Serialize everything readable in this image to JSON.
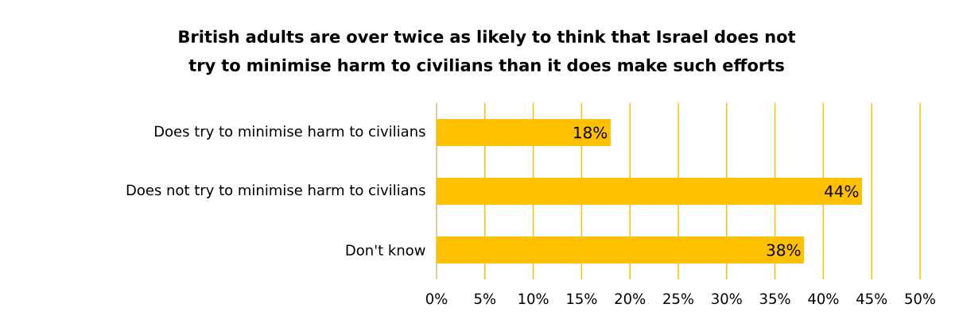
{
  "chart_data": {
    "type": "bar",
    "orientation": "horizontal",
    "title": "British adults are over twice as likely to think that Israel does not try to minimise harm to civilians than it does make such efforts",
    "categories": [
      "Does try to minimise harm to civilians",
      "Does not try to minimise harm to civilians",
      "Don't know"
    ],
    "values": [
      18,
      44,
      38
    ],
    "value_labels": [
      "18%",
      "44%",
      "38%"
    ],
    "color": "#ffc000",
    "xlim": [
      0,
      50
    ],
    "xticks": [
      {
        "value": 0,
        "label": "0%"
      },
      {
        "value": 5,
        "label": "5%"
      },
      {
        "value": 10,
        "label": "10%"
      },
      {
        "value": 15,
        "label": "15%"
      },
      {
        "value": 20,
        "label": "20%"
      },
      {
        "value": 25,
        "label": "25%"
      },
      {
        "value": 30,
        "label": "30%"
      },
      {
        "value": 35,
        "label": "35%"
      },
      {
        "value": 40,
        "label": "40%"
      },
      {
        "value": 45,
        "label": "45%"
      },
      {
        "value": 50,
        "label": "50%"
      }
    ],
    "grid": "x"
  }
}
